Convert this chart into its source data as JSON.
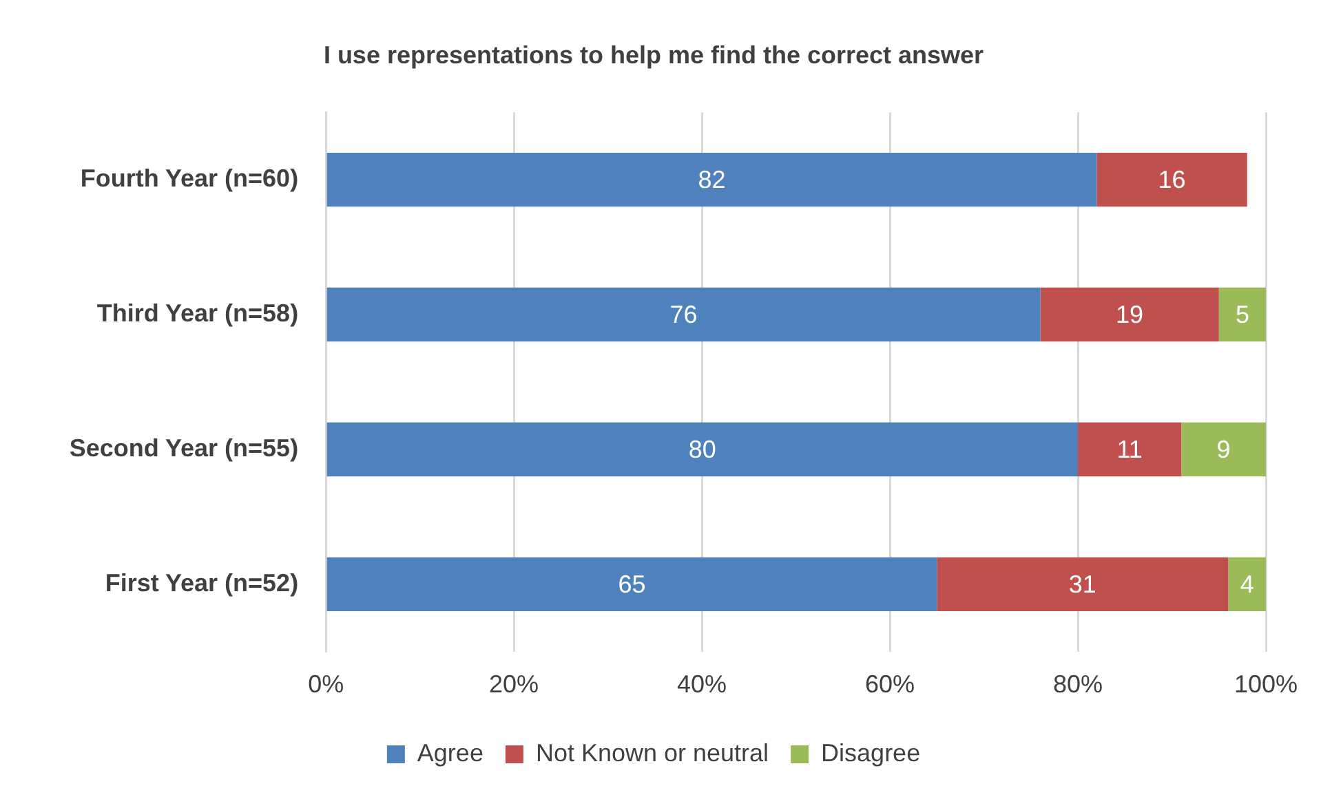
{
  "chart_data": {
    "type": "bar",
    "orientation": "horizontal",
    "stacked": true,
    "title": "I use representations to help me find the correct answer",
    "categories": [
      "Fourth Year (n=60)",
      "Third Year (n=58)",
      "Second Year (n=55)",
      "First Year (n=52)"
    ],
    "series": [
      {
        "name": "Agree",
        "color": "#4f81bd",
        "values": [
          82,
          76,
          80,
          65
        ]
      },
      {
        "name": "Not Known or neutral",
        "color": "#c0504d",
        "values": [
          16,
          19,
          11,
          31
        ]
      },
      {
        "name": "Disagree",
        "color": "#9bbb59",
        "values": [
          null,
          5,
          9,
          4
        ]
      }
    ],
    "data_labels": true,
    "xlim": [
      0,
      100
    ],
    "xticks": [
      {
        "value": 0,
        "label": "0%"
      },
      {
        "value": 20,
        "label": "20%"
      },
      {
        "value": 40,
        "label": "40%"
      },
      {
        "value": 60,
        "label": "60%"
      },
      {
        "value": 80,
        "label": "80%"
      },
      {
        "value": 100,
        "label": "100%"
      }
    ],
    "grid": "x",
    "legend": "bottom"
  }
}
